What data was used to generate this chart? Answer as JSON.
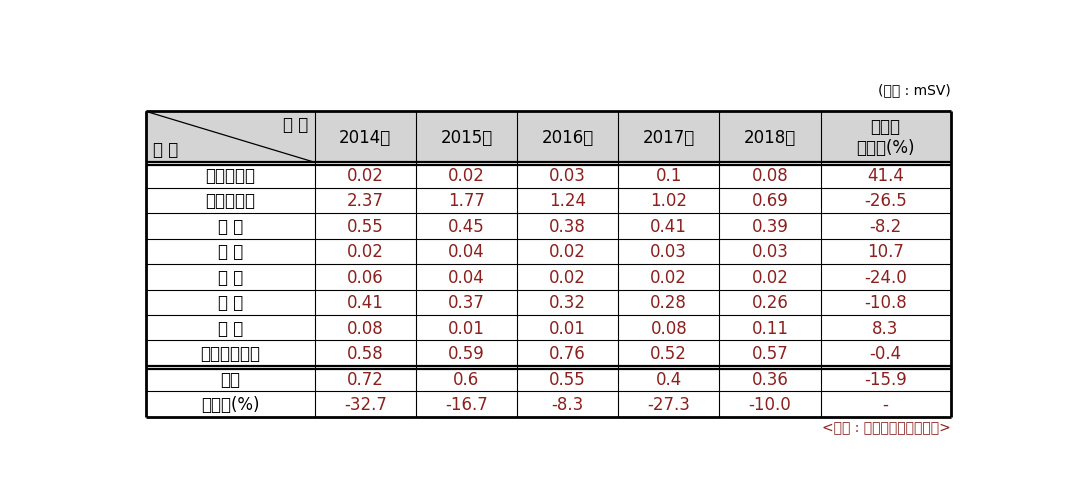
{
  "unit_text": "(단위 : mSV)",
  "source_text": "<출처 : 한국원자력안전재단>",
  "header_diag_top": "연 도",
  "header_diag_bot": "구 분",
  "header_cols": [
    "2014년",
    "2015년",
    "2016년",
    "2017년",
    "2018년",
    "연평균\n증가율(%)"
  ],
  "rows": [
    [
      "일반산업체",
      "0.02",
      "0.02",
      "0.03",
      "0.1",
      "0.08",
      "41.4"
    ],
    [
      "비파괴검사",
      "2.37",
      "1.77",
      "1.24",
      "1.02",
      "0.69",
      "-26.5"
    ],
    [
      "의 료",
      "0.55",
      "0.45",
      "0.38",
      "0.41",
      "0.39",
      "-8.2"
    ],
    [
      "연 구",
      "0.02",
      "0.04",
      "0.02",
      "0.03",
      "0.03",
      "10.7"
    ],
    [
      "교 육",
      "0.06",
      "0.04",
      "0.02",
      "0.02",
      "0.02",
      "-24.0"
    ],
    [
      "공 공",
      "0.41",
      "0.37",
      "0.32",
      "0.28",
      "0.26",
      "-10.8"
    ],
    [
      "군 사",
      "0.08",
      "0.01",
      "0.01",
      "0.08",
      "0.11",
      "8.3"
    ],
    [
      "원자력발전소",
      "0.58",
      "0.59",
      "0.76",
      "0.52",
      "0.57",
      "-0.4"
    ]
  ],
  "avg_row": [
    "평균",
    "0.72",
    "0.6",
    "0.55",
    "0.4",
    "0.36",
    "-15.9"
  ],
  "growth_row": [
    "증가율(%)",
    "-32.7",
    "-16.7",
    "-8.3",
    "-27.3",
    "-10.0",
    "-"
  ],
  "header_bg": "#d4d4d4",
  "data_text_color": "#8b2020",
  "header_text_color": "#000000",
  "row_label_color": "#000000",
  "bg_color": "#ffffff",
  "font_size": 12,
  "header_font_size": 12,
  "col_widths_rel": [
    1.75,
    1.05,
    1.05,
    1.05,
    1.05,
    1.05,
    1.35
  ],
  "row_units": [
    2.0,
    1.0,
    1.0,
    1.0,
    1.0,
    1.0,
    1.0,
    1.0,
    1.0,
    1.0,
    1.0
  ]
}
